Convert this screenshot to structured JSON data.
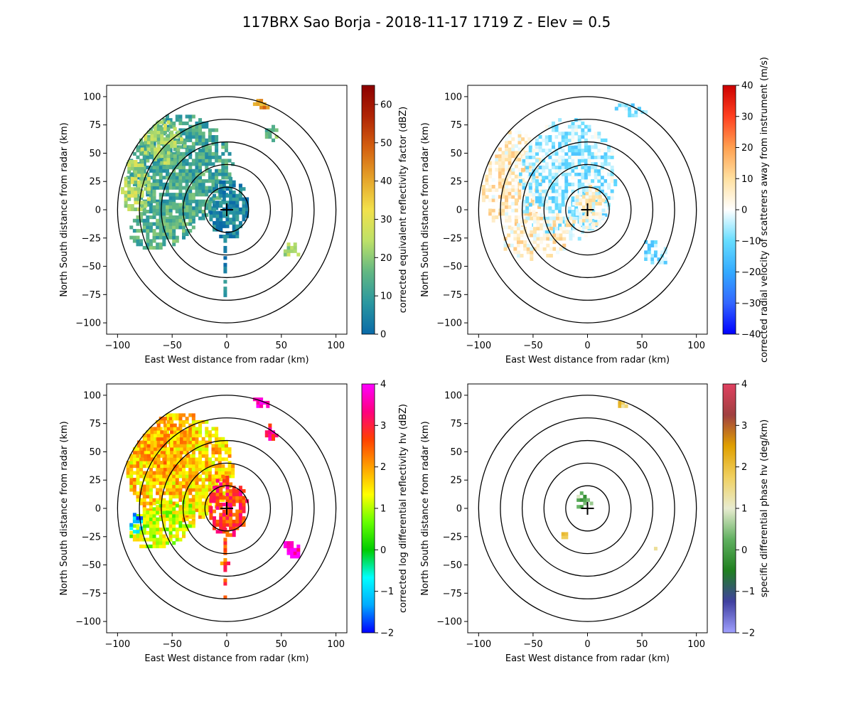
{
  "figure": {
    "title": "117BRX Sao Borja - 2018-11-17 1719 Z -  Elev = 0.5"
  },
  "chart_data": [
    {
      "type": "ppi",
      "panel": "top-left",
      "title": "",
      "xlabel": "East West distance from radar (km)",
      "ylabel": "North South distance from radar (km)",
      "xlim": [
        -110,
        110
      ],
      "ylim": [
        -110,
        110
      ],
      "xticks": [
        -100,
        -50,
        0,
        50,
        100
      ],
      "yticks": [
        -100,
        -75,
        -50,
        -25,
        0,
        25,
        50,
        75,
        100
      ],
      "range_rings_km": [
        20,
        40,
        60,
        80,
        100
      ],
      "radar_location": [
        0,
        0
      ],
      "colorbar": {
        "label": "corrected equivalent reflectivity factor (dBZ)",
        "vmin": 0,
        "vmax": 65,
        "ticks": [
          0,
          10,
          20,
          30,
          40,
          50,
          60
        ],
        "colors": [
          "#0a6aa8",
          "#2a97a0",
          "#62b783",
          "#bde168",
          "#f2e14b",
          "#e5a32a",
          "#d46010",
          "#b02505",
          "#8c0000"
        ]
      },
      "echo_regions": [
        {
          "name": "broad-west-echo",
          "center": [
            -45,
            35
          ],
          "radii": [
            50,
            48
          ],
          "rotation_deg": -30,
          "value": 12,
          "density": 0.9
        },
        {
          "name": "northwest-band",
          "center": [
            -62,
            60
          ],
          "radii": [
            26,
            18
          ],
          "rotation_deg": -35,
          "value": 22,
          "density": 0.85
        },
        {
          "name": "far-west-band",
          "center": [
            -85,
            20
          ],
          "radii": [
            14,
            24
          ],
          "rotation_deg": 0,
          "value": 24,
          "density": 0.85
        },
        {
          "name": "southwest-echo",
          "center": [
            -60,
            -15
          ],
          "radii": [
            32,
            20
          ],
          "rotation_deg": 20,
          "value": 14,
          "density": 0.85
        },
        {
          "name": "near-radar",
          "center": [
            0,
            0
          ],
          "radii": [
            18,
            28
          ],
          "rotation_deg": 0,
          "value": 4,
          "density": 0.9
        },
        {
          "name": "south-spoke",
          "center": [
            -3,
            -50
          ],
          "radii": [
            3,
            30
          ],
          "rotation_deg": 0,
          "value": 5,
          "density": 0.8
        },
        {
          "name": "north-cell",
          "center": [
            30,
            92
          ],
          "radii": [
            9,
            5
          ],
          "rotation_deg": -20,
          "value": 42,
          "density": 0.95
        },
        {
          "name": "east-cell",
          "center": [
            58,
            -38
          ],
          "radii": [
            9,
            7
          ],
          "rotation_deg": -30,
          "value": 22,
          "density": 0.9
        },
        {
          "name": "northeast-cell",
          "center": [
            40,
            65
          ],
          "radii": [
            6,
            8
          ],
          "rotation_deg": 0,
          "value": 16,
          "density": 0.8
        }
      ]
    },
    {
      "type": "ppi",
      "panel": "top-right",
      "title": "",
      "xlabel": "East West distance from radar (km)",
      "ylabel": "North South distance from radar (km)",
      "xlim": [
        -110,
        110
      ],
      "ylim": [
        -110,
        110
      ],
      "xticks": [
        -100,
        -50,
        0,
        50,
        100
      ],
      "yticks": [
        -100,
        -75,
        -50,
        -25,
        0,
        25,
        50,
        75,
        100
      ],
      "range_rings_km": [
        20,
        40,
        60,
        80,
        100
      ],
      "radar_location": [
        0,
        0
      ],
      "colorbar": {
        "label": "corrected radial velocity of scatterers away from instrument (m/s)",
        "vmin": -40,
        "vmax": 40,
        "ticks": [
          -40,
          -30,
          -20,
          -10,
          0,
          10,
          20,
          30,
          40
        ],
        "colors": [
          "#0000ff",
          "#3366ff",
          "#33aaff",
          "#66ddff",
          "#ffffff",
          "#ffe0a0",
          "#ffa050",
          "#ff4020",
          "#cc0000"
        ]
      },
      "echo_regions": [
        {
          "name": "west-outbound",
          "center": [
            -70,
            25
          ],
          "radii": [
            30,
            45
          ],
          "rotation_deg": 0,
          "value": 6,
          "density": 0.75
        },
        {
          "name": "central-inbound",
          "center": [
            -20,
            25
          ],
          "radii": [
            45,
            55
          ],
          "rotation_deg": -10,
          "value": -6,
          "density": 0.8
        },
        {
          "name": "southwest-mixed",
          "center": [
            -45,
            -25
          ],
          "radii": [
            35,
            20
          ],
          "rotation_deg": 15,
          "value": 5,
          "density": 0.7
        },
        {
          "name": "north-inbound",
          "center": [
            40,
            88
          ],
          "radii": [
            15,
            8
          ],
          "rotation_deg": 0,
          "value": -8,
          "density": 0.75
        },
        {
          "name": "east-inbound",
          "center": [
            60,
            -40
          ],
          "radii": [
            14,
            10
          ],
          "rotation_deg": -30,
          "value": -8,
          "density": 0.8
        },
        {
          "name": "near-radar",
          "center": [
            0,
            0
          ],
          "radii": [
            15,
            20
          ],
          "rotation_deg": 0,
          "value": 3,
          "density": 0.85
        }
      ]
    },
    {
      "type": "ppi",
      "panel": "bottom-left",
      "title": "",
      "xlabel": "East West distance from radar (km)",
      "ylabel": "North South distance from radar (km)",
      "xlim": [
        -110,
        110
      ],
      "ylim": [
        -110,
        110
      ],
      "xticks": [
        -100,
        -50,
        0,
        50,
        100
      ],
      "yticks": [
        -100,
        -75,
        -50,
        -25,
        0,
        25,
        50,
        75,
        100
      ],
      "range_rings_km": [
        20,
        40,
        60,
        80,
        100
      ],
      "radar_location": [
        0,
        0
      ],
      "colorbar": {
        "label": "corrected log differential reflectivity hv (dBZ)",
        "vmin": -2,
        "vmax": 4,
        "ticks": [
          -2,
          -1,
          0,
          1,
          2,
          3,
          4
        ],
        "colors": [
          "#0000ff",
          "#00aaff",
          "#00ffff",
          "#00cc00",
          "#66ff00",
          "#ffff00",
          "#ffa000",
          "#ff4000",
          "#ff0080",
          "#ff00ff"
        ]
      },
      "echo_regions": [
        {
          "name": "broad-west-echo",
          "center": [
            -45,
            35
          ],
          "radii": [
            50,
            48
          ],
          "rotation_deg": -30,
          "value": 1.7,
          "density": 0.95
        },
        {
          "name": "northwest-band",
          "center": [
            -60,
            55
          ],
          "radii": [
            28,
            22
          ],
          "rotation_deg": -35,
          "value": 1.9,
          "density": 0.9
        },
        {
          "name": "southwest-echo",
          "center": [
            -60,
            -15
          ],
          "radii": [
            32,
            20
          ],
          "rotation_deg": 20,
          "value": 1.1,
          "density": 0.9
        },
        {
          "name": "far-west-low",
          "center": [
            -85,
            -15
          ],
          "radii": [
            6,
            10
          ],
          "rotation_deg": 0,
          "value": -1.2,
          "density": 0.8
        },
        {
          "name": "near-radar",
          "center": [
            0,
            0
          ],
          "radii": [
            18,
            28
          ],
          "rotation_deg": 0,
          "value": 2.8,
          "density": 0.9
        },
        {
          "name": "south-spoke",
          "center": [
            -3,
            -50
          ],
          "radii": [
            3,
            30
          ],
          "rotation_deg": 0,
          "value": 2.5,
          "density": 0.8
        },
        {
          "name": "north-cell",
          "center": [
            30,
            92
          ],
          "radii": [
            9,
            5
          ],
          "rotation_deg": -20,
          "value": 3.7,
          "density": 0.95
        },
        {
          "name": "east-cell",
          "center": [
            58,
            -38
          ],
          "radii": [
            9,
            7
          ],
          "rotation_deg": -30,
          "value": 3.8,
          "density": 0.9
        },
        {
          "name": "northeast-cell",
          "center": [
            40,
            65
          ],
          "radii": [
            6,
            8
          ],
          "rotation_deg": 0,
          "value": 3.2,
          "density": 0.8
        }
      ]
    },
    {
      "type": "ppi",
      "panel": "bottom-right",
      "title": "",
      "xlabel": "East West distance from radar (km)",
      "ylabel": "North South distance from radar (km)",
      "xlim": [
        -110,
        110
      ],
      "ylim": [
        -110,
        110
      ],
      "xticks": [
        -100,
        -50,
        0,
        50,
        100
      ],
      "yticks": [
        -100,
        -75,
        -50,
        -25,
        0,
        25,
        50,
        75,
        100
      ],
      "range_rings_km": [
        20,
        40,
        60,
        80,
        100
      ],
      "radar_location": [
        0,
        0
      ],
      "colorbar": {
        "label": "specific differential phase hv (deg/km)",
        "vmin": -2,
        "vmax": 4,
        "ticks": [
          -2,
          -1,
          0,
          1,
          2,
          3,
          4
        ],
        "colors": [
          "#a0a0ff",
          "#4040a0",
          "#208020",
          "#60b060",
          "#e8ecd0",
          "#f0d060",
          "#e0a000",
          "#a04040",
          "#e04060"
        ]
      },
      "echo_regions": [
        {
          "name": "near-radar-streak",
          "center": [
            -5,
            5
          ],
          "radii": [
            8,
            8
          ],
          "rotation_deg": -40,
          "value": 0.3,
          "density": 0.7
        },
        {
          "name": "southwest-patch",
          "center": [
            -22,
            -25
          ],
          "radii": [
            3,
            5
          ],
          "rotation_deg": 0,
          "value": 1.6,
          "density": 0.8
        },
        {
          "name": "north-patch",
          "center": [
            30,
            91
          ],
          "radii": [
            5,
            3
          ],
          "rotation_deg": -20,
          "value": 1.8,
          "density": 0.85
        },
        {
          "name": "east-patch",
          "center": [
            60,
            -38
          ],
          "radii": [
            2,
            2
          ],
          "rotation_deg": 0,
          "value": 1.5,
          "density": 0.8
        }
      ]
    }
  ]
}
